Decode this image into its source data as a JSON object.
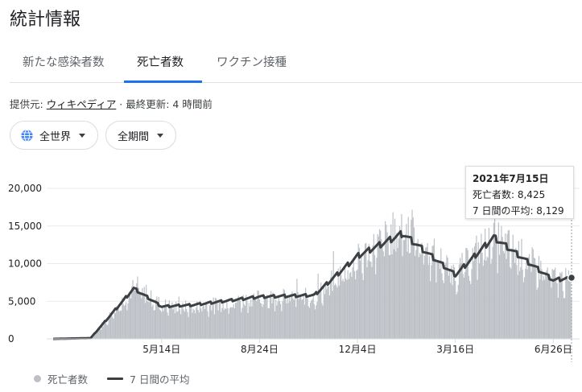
{
  "title": "統計情報",
  "tabs": [
    {
      "label": "新たな感染者数",
      "selected": false
    },
    {
      "label": "死亡者数",
      "selected": true
    },
    {
      "label": "ワクチン接種",
      "selected": false
    }
  ],
  "source": {
    "prefix": "提供元: ",
    "link": "ウィキペディア",
    "updated": " · 最終更新: 4 時間前"
  },
  "filters": {
    "region": {
      "label": "全世界",
      "icon": "globe-icon"
    },
    "period": {
      "label": "全期間"
    }
  },
  "colors": {
    "bar": "#bdc1c6",
    "avg_line": "#3c4043",
    "accent": "#1a73e8"
  },
  "tooltip": {
    "date": "2021年7月15日",
    "deaths": "死亡者数: 8,425",
    "avg": "7 日間の平均: 8,129"
  },
  "legend": {
    "deaths": "死亡者数",
    "avg": "7 日間の平均"
  },
  "chart_data": {
    "type": "bar",
    "ylim": [
      0,
      20000
    ],
    "y_ticks": [
      "20,000",
      "15,000",
      "10,000",
      "5,000",
      "0"
    ],
    "x_tick_labels": [
      "5月14日",
      "8月24日",
      "12月4日",
      "3月16日",
      "6月26日"
    ],
    "grid": true,
    "x": [
      "2020-01-22",
      "2020-03-01",
      "2020-04-15",
      "2020-05-14",
      "2020-06-15",
      "2020-08-24",
      "2020-10-20",
      "2020-12-04",
      "2021-01-20",
      "2021-03-16",
      "2021-04-25",
      "2021-06-26",
      "2021-07-15"
    ],
    "series": [
      {
        "name": "死亡者数",
        "type": "bar",
        "values": [
          0,
          100,
          7500,
          5000,
          4600,
          6100,
          6200,
          11500,
          16500,
          9500,
          15000,
          9000,
          8425
        ]
      },
      {
        "name": "7 日間の平均",
        "type": "line",
        "values": [
          0,
          100,
          6700,
          4300,
          4500,
          5600,
          5800,
          11000,
          14000,
          8500,
          13500,
          7800,
          8129
        ]
      }
    ]
  }
}
